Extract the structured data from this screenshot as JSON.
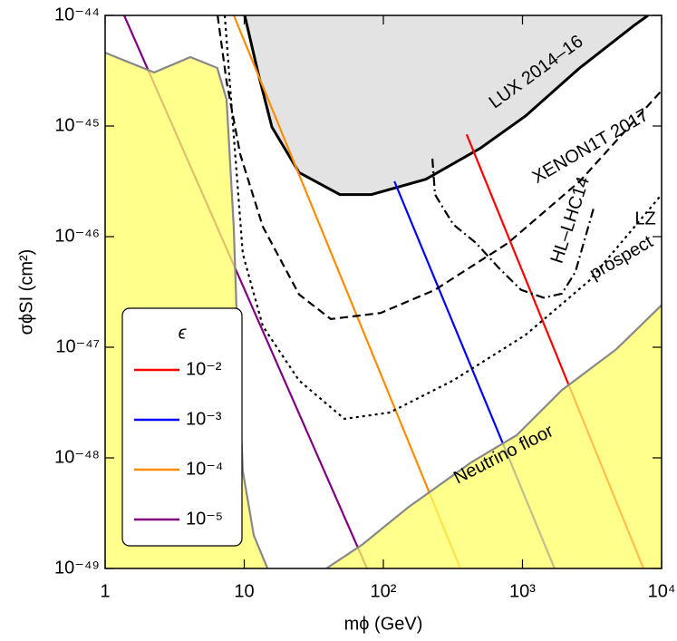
{
  "chart_data": {
    "type": "line",
    "xlabel": "mϕ (GeV)",
    "ylabel": "σϕSI (cm²)",
    "xscale": "log",
    "yscale": "log",
    "xlim": [
      1,
      10000
    ],
    "ylim": [
      1e-49,
      1e-44
    ],
    "xticks": [
      1,
      10,
      {
        "value": 100,
        "label": "10²"
      },
      {
        "value": 1000,
        "label": "10³"
      },
      {
        "value": 10000,
        "label": "10⁴"
      }
    ],
    "yticks": [
      {
        "value": 1e-49,
        "label": "10⁻⁴⁹"
      },
      {
        "value": 1e-48,
        "label": "10⁻⁴⁸"
      },
      {
        "value": 1e-47,
        "label": "10⁻⁴⁷"
      },
      {
        "value": 1e-46,
        "label": "10⁻⁴⁶"
      },
      {
        "value": 1e-45,
        "label": "10⁻⁴⁵"
      },
      {
        "value": 1e-44,
        "label": "10⁻⁴⁴"
      }
    ],
    "legend_title": "ϵ",
    "legend": "lower left",
    "series": [
      {
        "name": "10⁻²",
        "color": "#ff0000",
        "dash": "solid",
        "x": [
          397,
          7410
        ],
        "values": [
          8.4e-46,
          1e-49
        ]
      },
      {
        "name": "10⁻³",
        "color": "#0000ff",
        "dash": "solid",
        "x": [
          120,
          1700
        ],
        "values": [
          3.16e-46,
          1e-49
        ]
      },
      {
        "name": "10⁻⁴",
        "color": "#ff8c00",
        "dash": "solid",
        "x": [
          8.41,
          358
        ],
        "values": [
          1e-44,
          1e-49
        ]
      },
      {
        "name": "10⁻⁵",
        "color": "#800080",
        "dash": "solid",
        "x": [
          1.37,
          76.3
        ],
        "values": [
          1e-44,
          1e-49
        ]
      },
      {
        "color": "#000000",
        "dash": "solid",
        "fill": "above",
        "fill_color": "#e3e3e3",
        "x": [
          10.07,
          12.6,
          15.8,
          24.8,
          48.7,
          82,
          202,
          498,
          1050,
          2580,
          6330,
          7980
        ],
        "values": [
          1e-44,
          3e-45,
          9.8e-46,
          3.8e-46,
          2.4e-46,
          2.4e-46,
          3.3e-46,
          6.3e-46,
          1.23e-45,
          3.35e-45,
          8.1e-45,
          1e-44
        ]
      },
      {
        "color": "#000000",
        "dash": "dashed",
        "x": [
          6.43,
          7.46,
          9.35,
          13.6,
          24.8,
          41.9,
          95.6,
          235,
          781,
          2580,
          10000
        ],
        "values": [
          1e-44,
          2.52e-45,
          5.57e-46,
          1.23e-46,
          3e-47,
          1.8e-47,
          2.04e-47,
          3.3e-47,
          8.7e-47,
          3.16e-46,
          2.09e-45
        ]
      },
      {
        "color": "#000000",
        "dash": "dotted",
        "x": [
          7.24,
          8.41,
          9.77,
          13.6,
          24.8,
          52.5,
          111,
          317,
          1050,
          3020,
          10000
        ],
        "values": [
          1e-44,
          8.1e-46,
          7e-47,
          1.55e-47,
          5e-48,
          2.25e-48,
          2.57e-48,
          5e-48,
          1.29e-47,
          4e-47,
          2.4e-46
        ]
      },
      {
        "color": "#000000",
        "dash": "dashdot",
        "x": [
          225,
          235,
          318,
          462,
          672,
          977,
          1420,
          1920,
          2400,
          3240
        ],
        "values": [
          5.07e-46,
          2.4e-46,
          1.29e-46,
          8.8e-47,
          5.25e-47,
          3.3e-47,
          2.8e-47,
          3.05e-47,
          4.8e-47,
          1.8e-46
        ]
      },
      {
        "color": "#888888",
        "dash": "solid",
        "fill": "below",
        "fill_color": "#ffff66",
        "x": [
          1,
          2.25,
          4.1,
          6.4,
          7.46,
          8.4,
          9.07,
          9.77,
          11.7,
          14.7
        ],
        "values": [
          4.6e-45,
          3.05e-45,
          4.2e-45,
          3.35e-45,
          1.74e-45,
          1.23e-46,
          7.2e-48,
          7.6e-49,
          2e-49,
          1e-49
        ]
      },
      {
        "color": "#888888",
        "dash": "solid",
        "fill": "below",
        "fill_color": "#ffff66",
        "x": [
          38.9,
          70.8,
          150,
          428,
          907,
          1920,
          4720,
          10000
        ],
        "values": [
          1e-49,
          1.65e-49,
          3.55e-49,
          9.1e-49,
          1.6e-48,
          4.1e-48,
          9.6e-48,
          2.4e-47
        ]
      }
    ],
    "annotations": [
      "LUX 2014–16",
      "XENON1T 2017",
      "HL–LHC14",
      "LZ",
      "prospect",
      "Neutrino floor"
    ]
  }
}
